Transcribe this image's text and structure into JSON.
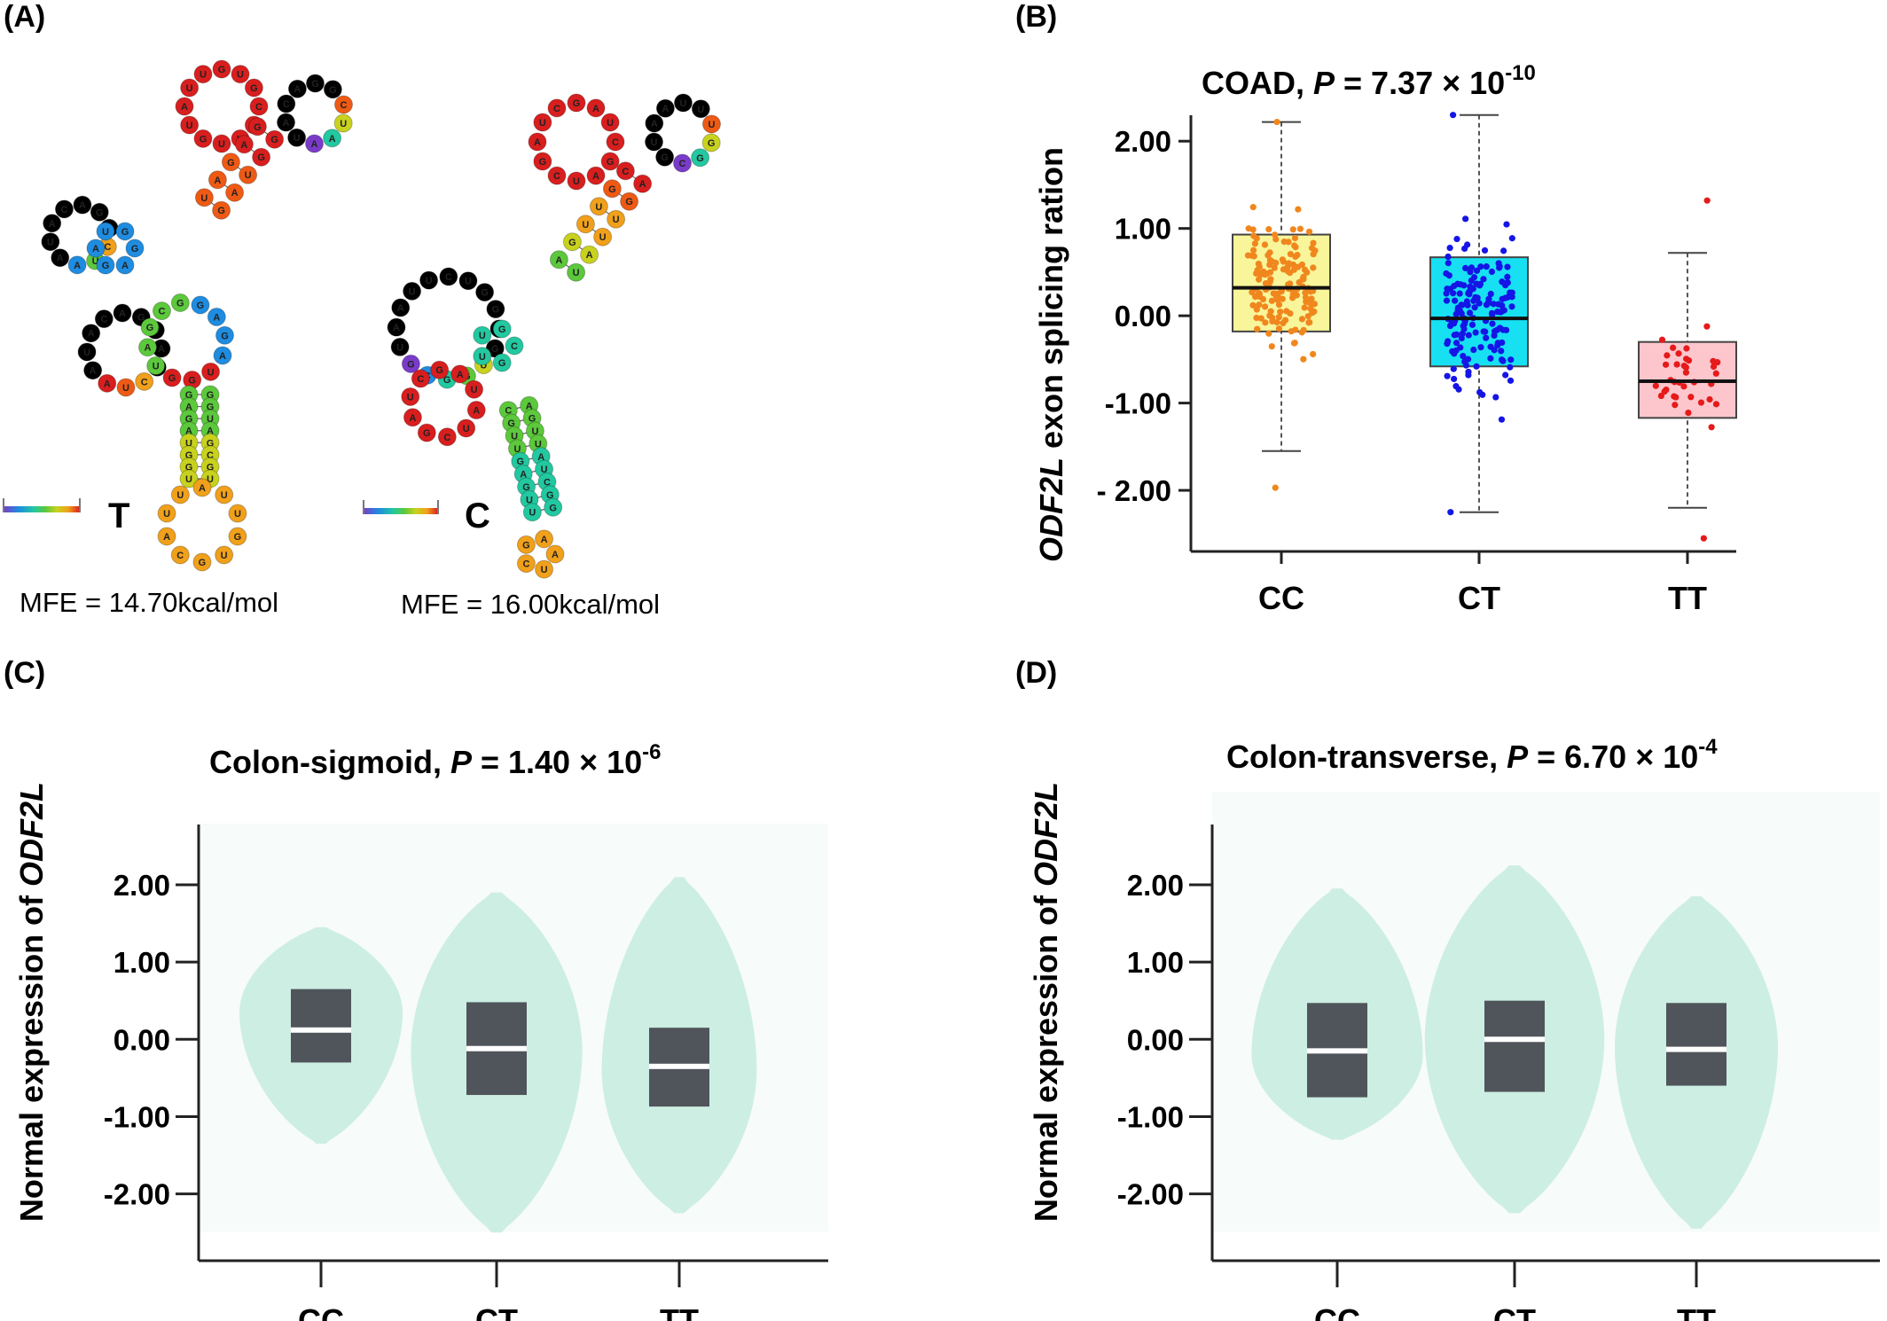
{
  "panels": {
    "a": {
      "label": "(A)"
    },
    "b": {
      "label": "(B)"
    },
    "c": {
      "label": "(C)"
    },
    "d": {
      "label": "(D)"
    }
  },
  "rna": {
    "left": {
      "allele": "T",
      "mfe": "MFE = 14.70kcal/mol",
      "stem_seq": "GAGAUGGUAGCGUUCGA",
      "loop_seq": "AUUGUGC",
      "side_seq": "CUAAUACAGGAC"
    },
    "right": {
      "allele": "C",
      "mfe": "MFE = 16.00kcal/mol",
      "stem_seq": "CGUUGAGUUAUCGG",
      "loop_seq": "AUCG",
      "side_seq": "UGGCGUAAUUC"
    },
    "colors": [
      "#d81e1e",
      "#ee5a14",
      "#f0a01a",
      "#c8d21e",
      "#5cc83c",
      "#22c8a0",
      "#1e8ce0",
      "#7a3cc8"
    ]
  },
  "chart_data": [
    {
      "panel": "B",
      "type": "box",
      "title_prefix": "COAD, ",
      "title_p": "P",
      "title_value": " = 7.37 × 10",
      "title_exp": "-10",
      "ylabel_italic": "ODF2L",
      "ylabel_rest": " exon splicing ration",
      "categories": [
        "CC",
        "CT",
        "TT"
      ],
      "yticks": [
        "2.00",
        "1.00",
        "0.00",
        "-1.00",
        "- 2.00"
      ],
      "tick_values": [
        2,
        1,
        0,
        -1,
        -2
      ],
      "ylim": [
        -2.7,
        2.5
      ],
      "colors": {
        "box": [
          "#f8f59a",
          "#17e0f2",
          "#fcc6cc"
        ],
        "points": [
          "#f0871e",
          "#1515e6",
          "#e61a1a"
        ]
      },
      "series": [
        {
          "name": "CC",
          "min": -1.55,
          "q1": -0.18,
          "median": 0.32,
          "q3": 0.93,
          "max": 2.22,
          "n": 150,
          "pmin": -1.97,
          "pmax": 2.22
        },
        {
          "name": "CT",
          "min": -2.25,
          "q1": -0.58,
          "median": -0.03,
          "q3": 0.67,
          "max": 2.3,
          "n": 160,
          "pmin": -2.25,
          "pmax": 2.3
        },
        {
          "name": "TT",
          "min": -2.2,
          "q1": -1.17,
          "median": -0.75,
          "q3": -0.3,
          "max": 0.72,
          "n": 38,
          "pmin": -2.55,
          "pmax": 1.32
        }
      ]
    },
    {
      "panel": "C",
      "type": "violin",
      "title_prefix": "Colon-sigmoid, ",
      "title_p": "P",
      "title_value": " = 1.40 × 10",
      "title_exp": "-6",
      "ylabel_prefix": "Normal expression of ",
      "ylabel_italic": "ODF2L",
      "categories": [
        "CC",
        "CT",
        "TT"
      ],
      "yticks": [
        "2.00",
        "1.00",
        "0.00",
        "-1.00",
        "-2.00"
      ],
      "tick_values": [
        2,
        1,
        0,
        -1,
        -2
      ],
      "ylim": [
        -2.75,
        2.55
      ],
      "colors": {
        "violin": "#cdeee3",
        "box": "#4f555a",
        "median": "#ffffff",
        "bg": "#f7fbfa"
      },
      "series": [
        {
          "name": "CC",
          "q1": -0.3,
          "median": 0.12,
          "q3": 0.65,
          "ymin": -1.35,
          "ymax": 1.45,
          "peak": 0.35,
          "width": 1.0
        },
        {
          "name": "CT",
          "q1": -0.72,
          "median": -0.12,
          "q3": 0.48,
          "ymin": -2.5,
          "ymax": 1.9,
          "peak": -0.15,
          "width": 1.05
        },
        {
          "name": "TT",
          "q1": -0.87,
          "median": -0.35,
          "q3": 0.15,
          "ymin": -2.25,
          "ymax": 2.1,
          "peak": -0.4,
          "width": 0.95
        }
      ]
    },
    {
      "panel": "D",
      "type": "violin",
      "title_prefix": "Colon-transverse, ",
      "title_p": "P",
      "title_value": " = 6.70 × 10",
      "title_exp": "-4",
      "ylabel_prefix": "Normal expression of ",
      "ylabel_italic": "ODF2L",
      "categories": [
        "CC",
        "CT",
        "TT"
      ],
      "yticks": [
        "2.00",
        "1.00",
        "0.00",
        "-1.00",
        "-2.00"
      ],
      "tick_values": [
        2,
        1,
        0,
        -1,
        -2
      ],
      "ylim": [
        -2.75,
        2.55
      ],
      "colors": {
        "violin": "#cdeee3",
        "box": "#4f555a",
        "median": "#ffffff",
        "bg": "#f7fbfa"
      },
      "series": [
        {
          "name": "CC",
          "q1": -0.75,
          "median": -0.15,
          "q3": 0.47,
          "ymin": -1.3,
          "ymax": 1.95,
          "peak": -0.2,
          "width": 1.05
        },
        {
          "name": "CT",
          "q1": -0.68,
          "median": 0.0,
          "q3": 0.5,
          "ymin": -2.25,
          "ymax": 2.25,
          "peak": 0.0,
          "width": 1.1
        },
        {
          "name": "TT",
          "q1": -0.6,
          "median": -0.13,
          "q3": 0.47,
          "ymin": -2.45,
          "ymax": 1.85,
          "peak": -0.1,
          "width": 1.0
        }
      ]
    }
  ]
}
